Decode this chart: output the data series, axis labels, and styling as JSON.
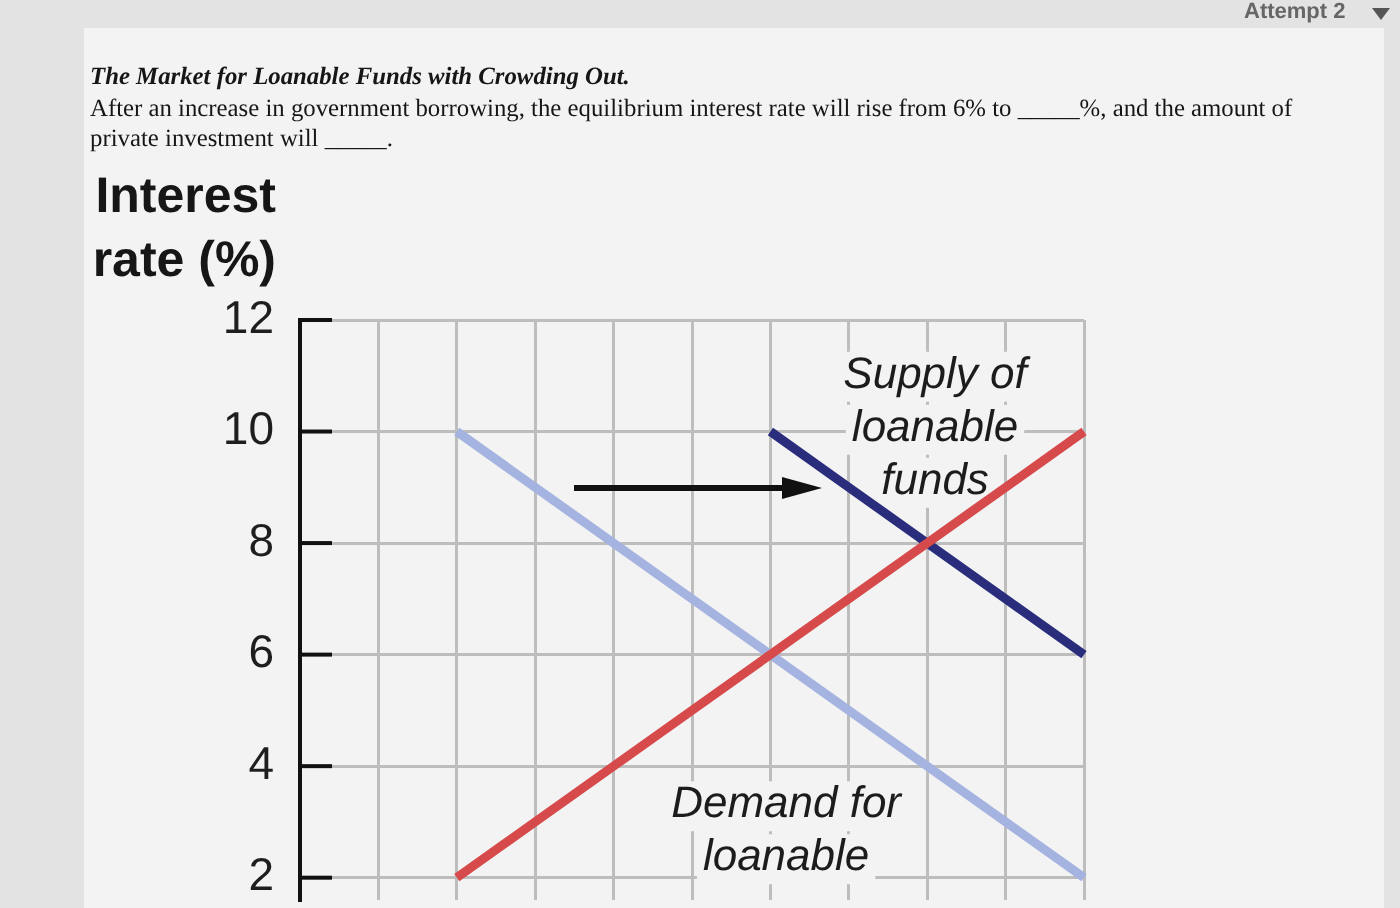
{
  "chart_data": {
    "type": "line",
    "title": "The Market for Loanable Funds with Crowding Out.",
    "subtitle": "After an increase in government borrowing, the equilibrium interest rate will rise from 6% to _____%, and the amount of private investment will _____.",
    "ylabel": "Interest rate (%)",
    "annotations": [
      "Attempt 2"
    ],
    "categories": [
      null,
      null,
      null,
      null,
      null,
      null,
      null,
      null,
      null,
      null,
      null
    ],
    "series": [
      {
        "name": "Supply of loanable funds",
        "color": "#d64a4b",
        "values": [
          null,
          null,
          2,
          3,
          4,
          5,
          6,
          7,
          8,
          9,
          10
        ]
      },
      {
        "name": "Demand for loanable",
        "color": "#a4b3df",
        "values": [
          null,
          null,
          10,
          9,
          8,
          7,
          6,
          5,
          4,
          3,
          2
        ]
      },
      {
        "color": "#2a2c7c",
        "values": [
          null,
          null,
          null,
          null,
          null,
          null,
          10,
          9,
          8,
          7,
          6
        ]
      }
    ],
    "ylim": [
      1.6,
      12
    ],
    "yticks": [
      2,
      4,
      6,
      8,
      10,
      12
    ],
    "grid": true,
    "tick_labels": "y"
  }
}
